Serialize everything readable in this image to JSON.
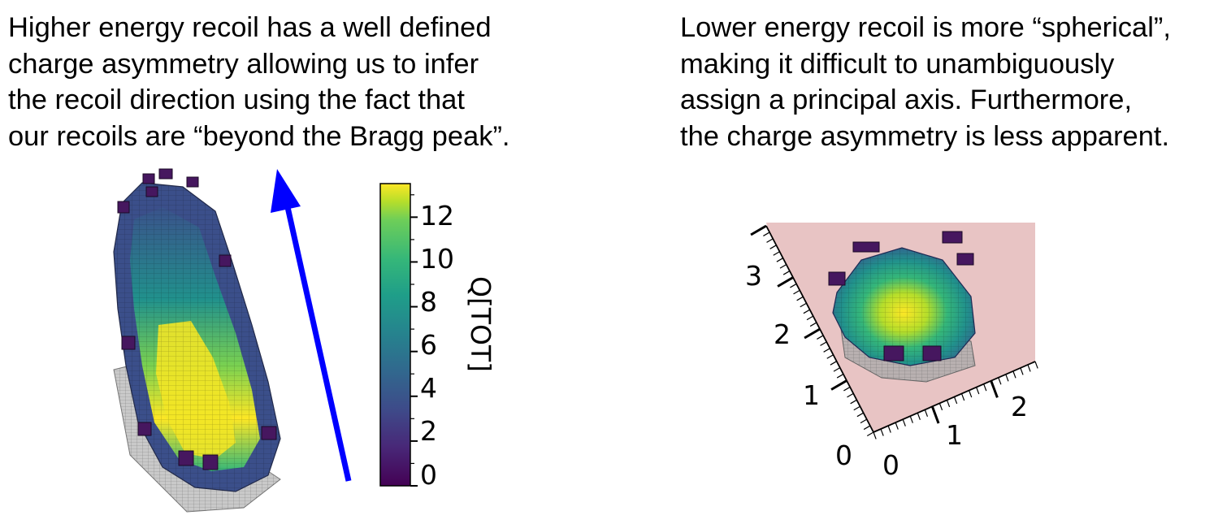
{
  "left_caption": {
    "lines": [
      "Higher energy recoil has a well defined",
      "charge asymmetry allowing us to infer",
      "the recoil direction using the fact that",
      "our recoils are “beyond the Bragg peak”."
    ]
  },
  "right_caption": {
    "lines": [
      "Lower energy recoil is more “spherical”,",
      "making it difficult to unambiguously",
      "assign a principal axis. Furthermore,",
      "the charge asymmetry is less apparent."
    ]
  },
  "colorbar": {
    "label": "Q[TOT]",
    "tick_labels": [
      "12",
      "10",
      "8",
      "6",
      "4",
      "2",
      "0"
    ],
    "min": 0,
    "max": 13.5,
    "colormap": "viridis"
  },
  "direction_arrow": {
    "color": "#0000ff"
  },
  "right_plot": {
    "axis1_ticks": [
      "0",
      "1",
      "2",
      "3"
    ],
    "axis2_ticks": [
      "0",
      "1",
      "2"
    ],
    "pane_color": "#e8c4c4"
  }
}
